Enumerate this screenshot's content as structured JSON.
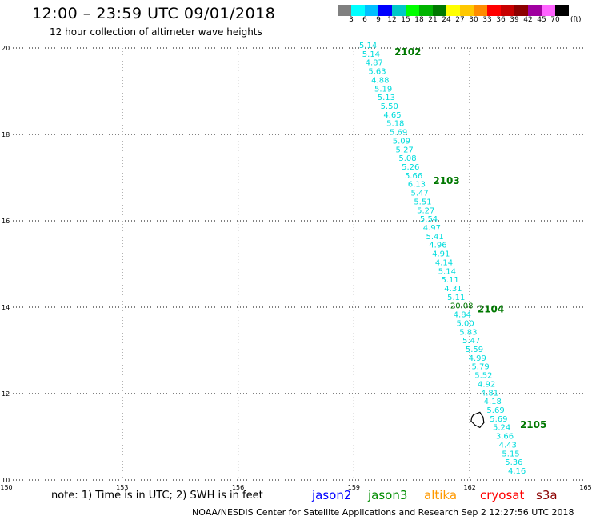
{
  "header": {
    "title": "12:00 – 23:59 UTC 09/01/2018",
    "subtitle": "12 hour collection of altimeter wave heights"
  },
  "scale": {
    "unit": "(ft)",
    "labels": [
      "3",
      "6",
      "9",
      "12",
      "15",
      "18",
      "21",
      "24",
      "27",
      "30",
      "33",
      "36",
      "39",
      "42",
      "45",
      "70"
    ],
    "colors": [
      "#808080",
      "#00ffff",
      "#00bfff",
      "#0000ff",
      "#00c8c8",
      "#00ff00",
      "#00b400",
      "#007800",
      "#ffff00",
      "#ffc800",
      "#ff8c00",
      "#ff0000",
      "#c80000",
      "#8c0000",
      "#a000a0",
      "#ff64ff",
      "#000000"
    ]
  },
  "axes": {
    "x_ticks": [
      "150",
      "153",
      "156",
      "159",
      "162",
      "165"
    ],
    "y_ticks": [
      "20",
      "18",
      "16",
      "14",
      "12",
      "10"
    ],
    "x_range": [
      150,
      165
    ],
    "y_range": [
      10,
      20
    ]
  },
  "track_values": [
    "5.14",
    "5.14",
    "4.87",
    "5.63",
    "4.88",
    "5.19",
    "5.13",
    "5.50",
    "4.65",
    "5.18",
    "5.69",
    "5.09",
    "5.27",
    "5.08",
    "5.26",
    "5.66",
    "6.13",
    "5.47",
    "5.51",
    "5.27",
    "5.54",
    "4.97",
    "5.41",
    "4.96",
    "4.91",
    "4.14",
    "5.14",
    "5.11",
    "4.31",
    "5.11",
    "20.08",
    "4.84",
    "5.00",
    "5.83",
    "5.47",
    "5.59",
    "4.99",
    "5.79",
    "5.52",
    "4.92",
    "4.81",
    "4.18",
    "5.69",
    "5.69",
    "5.24",
    "3.66",
    "4.43",
    "5.15",
    "5.36",
    "4.16"
  ],
  "track_labels": [
    {
      "text": "2102",
      "lon": 160.05,
      "lat": 19.83
    },
    {
      "text": "2103",
      "lon": 161.05,
      "lat": 16.85
    },
    {
      "text": "2104",
      "lon": 162.2,
      "lat": 13.88
    },
    {
      "text": "2105",
      "lon": 163.3,
      "lat": 11.2
    }
  ],
  "island": {
    "lon": 162.2,
    "lat": 11.4
  },
  "note": "note: 1) Time is in UTC; 2) SWH is in feet",
  "missions": [
    {
      "name": "jason2",
      "color": "#0000ff"
    },
    {
      "name": "jason3",
      "color": "#008c00"
    },
    {
      "name": "altika",
      "color": "#ff9900"
    },
    {
      "name": "cryosat",
      "color": "#ff0000"
    },
    {
      "name": "s3a",
      "color": "#8b0000"
    }
  ],
  "footer": "NOAA/NESDIS Center for Satellite Applications and Research     Sep  2 12:27:56 UTC 2018"
}
